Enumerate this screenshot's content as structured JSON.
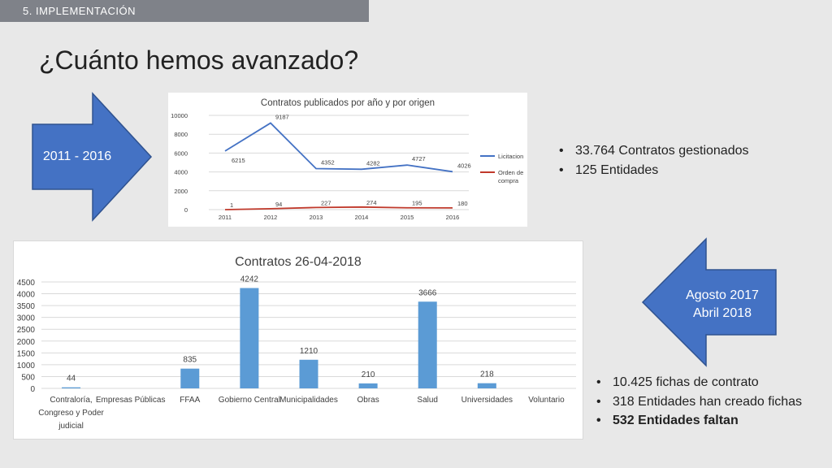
{
  "section_label": "5. IMPLEMENTACIÓN",
  "title": "¿Cuánto hemos avanzado?",
  "arrow_right": {
    "label": "2011 - 2016",
    "color": "#4472c4"
  },
  "arrow_left": {
    "label_line1": "Agosto 2017",
    "label_line2": "Abril 2018",
    "color": "#4472c4"
  },
  "bullets_top": [
    {
      "text": "33.764 Contratos gestionados"
    },
    {
      "text": "125 Entidades"
    }
  ],
  "bullets_bottom": [
    {
      "text": "10.425 fichas de contrato"
    },
    {
      "text": "318 Entidades han creado fichas"
    },
    {
      "text": "532 Entidades faltan"
    }
  ],
  "chart_data": [
    {
      "type": "line",
      "title": "Contratos publicados por año y por origen",
      "x": [
        "2011",
        "2012",
        "2013",
        "2014",
        "2015",
        "2016"
      ],
      "ylim": [
        0,
        10000
      ],
      "yticks": [
        "0",
        "2000",
        "4000",
        "6000",
        "8000",
        "10000"
      ],
      "legend_position": "right",
      "series": [
        {
          "name": "Licitacion",
          "color": "#4472c4",
          "values": [
            6215,
            9187,
            4352,
            4282,
            4727,
            4026
          ],
          "labels": [
            "6215",
            "9187",
            "4352",
            "4282",
            "4727",
            "4026"
          ]
        },
        {
          "name": "Orden de compra",
          "color": "#c0392b",
          "values": [
            1,
            94,
            227,
            274,
            195,
            180
          ],
          "labels": [
            "1",
            "94",
            "227",
            "274",
            "195",
            "180"
          ]
        }
      ]
    },
    {
      "type": "bar",
      "title": "Contratos 26-04-2018",
      "categories": [
        [
          "Contraloría,",
          "Congreso y Poder",
          "judicial"
        ],
        [
          "Empresas Públicas"
        ],
        [
          "FFAA"
        ],
        [
          "Gobierno Central"
        ],
        [
          "Municipalidades"
        ],
        [
          "Obras"
        ],
        [
          "Salud"
        ],
        [
          "Universidades"
        ],
        [
          "Voluntario"
        ]
      ],
      "values": [
        44,
        null,
        835,
        4242,
        1210,
        210,
        3666,
        218,
        null
      ],
      "labels": [
        "44",
        "",
        "835",
        "4242",
        "1210",
        "210",
        "3666",
        "218",
        ""
      ],
      "ylim": [
        0,
        4500
      ],
      "yticks": [
        "0",
        "500",
        "1000",
        "1500",
        "2000",
        "2500",
        "3000",
        "3500",
        "4000",
        "4500"
      ],
      "color": "#5b9bd5"
    }
  ]
}
